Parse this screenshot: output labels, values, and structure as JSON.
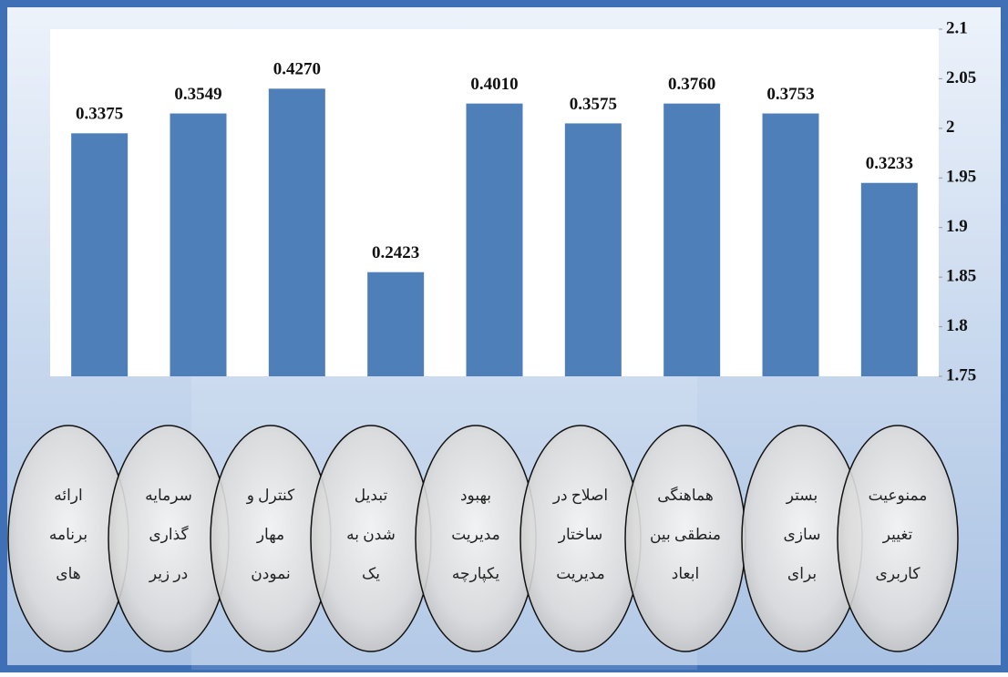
{
  "chart_data": {
    "type": "bar",
    "categories": [
      [
        "ارائه",
        "برنامه",
        "های"
      ],
      [
        "سرمایه",
        "گذاری",
        "در زیر"
      ],
      [
        "کنترل و",
        "مهار",
        "نمودن"
      ],
      [
        "تبدیل",
        "شدن به",
        "یک"
      ],
      [
        "بهبود",
        "مدیریت",
        "یکپارچه"
      ],
      [
        "اصلاح در",
        "ساختار",
        "مدیریت"
      ],
      [
        "هماهنگی",
        "منطقی بین",
        "ابعاد"
      ],
      [
        "بستر",
        "سازی",
        "برای"
      ],
      [
        "ممنوعیت",
        "تغییر",
        "کاربری"
      ]
    ],
    "values": [
      1.995,
      2.015,
      2.04,
      1.855,
      2.025,
      2.005,
      2.025,
      2.015,
      1.945
    ],
    "annotations": [
      "0.3375",
      "0.3549",
      "0.4270",
      "0.2423",
      "0.4010",
      "0.3575",
      "0.3760",
      "0.3753",
      "0.3233"
    ],
    "color": "#4f7fb8",
    "ylim": [
      1.75,
      2.1
    ],
    "yticks": [
      1.75,
      1.8,
      1.85,
      1.9,
      1.95,
      2,
      2.05,
      2.1
    ]
  }
}
